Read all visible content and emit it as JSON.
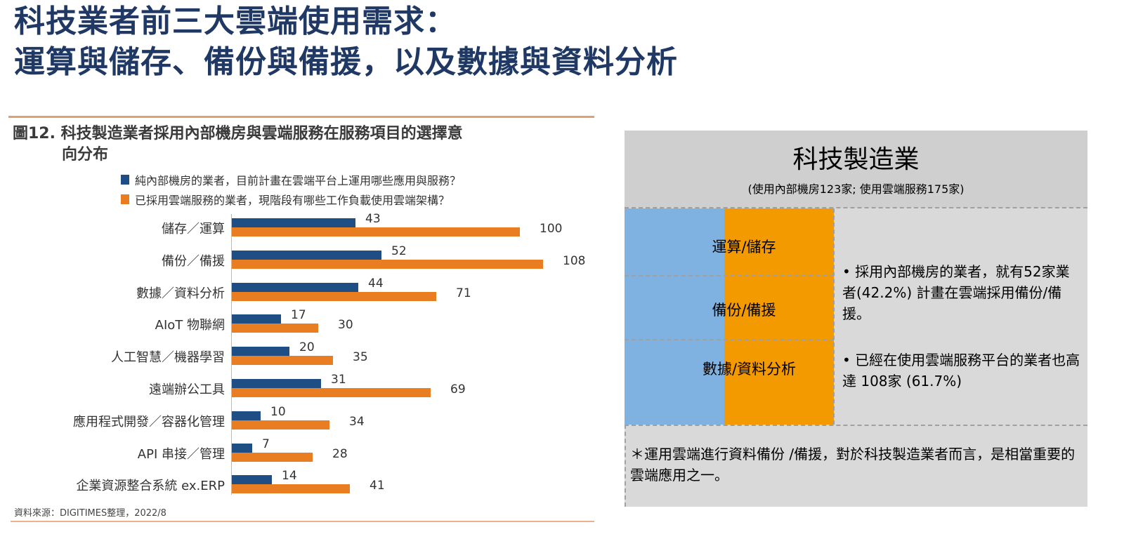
{
  "page": {
    "title_line1": "科技業者前三大雲端使用需求：",
    "title_line2": "運算與儲存、備份與備援，以及數據與資料分析"
  },
  "figure": {
    "title_line1": "圖12. 科技製造業者採用內部機房與雲端服務在服務項目的選擇意",
    "title_line2": "向分布",
    "source": "資料來源：DIGITIMES整理，2022/8"
  },
  "chart_data": {
    "type": "bar",
    "orientation": "horizontal",
    "title": "圖12. 科技製造業者採用內部機房與雲端服務在服務項目的選擇意向分布",
    "xlabel": "",
    "ylabel": "",
    "grid": false,
    "legend_position": "top",
    "categories": [
      "儲存／運算",
      "備份／備援",
      "數據／資料分析",
      "AIoT 物聯網",
      "人工智慧／機器學習",
      "遠端辦公工具",
      "應用程式開發／容器化管理",
      "API 串接／管理",
      "企業資源整合系統 ex.ERP"
    ],
    "series": [
      {
        "name": "純內部機房的業者，目前計畫在雲端平台上運用哪些應用與服務？",
        "color": "#1f4e84",
        "values": [
          43,
          52,
          44,
          17,
          20,
          31,
          10,
          7,
          14
        ]
      },
      {
        "name": "已採用雲端服務的業者，現階段有哪些工作負載使用雲端架構？",
        "color": "#e87d22",
        "values": [
          100,
          108,
          71,
          30,
          35,
          69,
          34,
          28,
          41
        ]
      }
    ],
    "xlim": [
      0,
      110
    ]
  },
  "panel": {
    "title": "科技製造業",
    "subtitle": "(使用內部機房123家; 使用雲端服務175家)",
    "rows": [
      {
        "label": "運算/儲存"
      },
      {
        "label": "備份/備援"
      },
      {
        "label": "數據/資料分析"
      }
    ],
    "note1": "• 採用內部機房的業者，就有52家業者(42.2%) 計畫在雲端採用備份/備援。",
    "note2": "• 已經在使用雲端服務平台的業者也高達 108家 (61.7%)",
    "footnote": "＊運用雲端進行資料備份 /備援，對於科技製造業者而言，是相當重要的雲端應用之一。",
    "colors": {
      "onprem": "#7fb2e0",
      "cloud": "#f39a00",
      "panel_bg": "#d9d9d9"
    }
  }
}
